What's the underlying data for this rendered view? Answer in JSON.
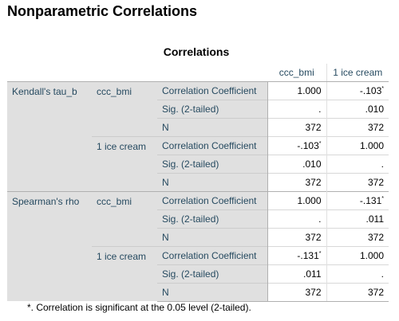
{
  "heading": "Nonparametric Correlations",
  "table_title": "Correlations",
  "columns": [
    "ccc_bmi",
    "1 ice cream"
  ],
  "rows": [
    {
      "group": "Kendall's tau_b",
      "var": "ccc_bmi",
      "stat": "Correlation Coefficient",
      "v1": "1.000",
      "v1_sup": "",
      "v2": "-.103",
      "v2_sup": "*"
    },
    {
      "group": "",
      "var": "",
      "stat": "Sig. (2-tailed)",
      "v1": ".",
      "v1_sup": "",
      "v2": ".010",
      "v2_sup": ""
    },
    {
      "group": "",
      "var": "",
      "stat": "N",
      "v1": "372",
      "v1_sup": "",
      "v2": "372",
      "v2_sup": ""
    },
    {
      "group": "",
      "var": "1 ice cream",
      "stat": "Correlation Coefficient",
      "v1": "-.103",
      "v1_sup": "*",
      "v2": "1.000",
      "v2_sup": ""
    },
    {
      "group": "",
      "var": "",
      "stat": "Sig. (2-tailed)",
      "v1": ".010",
      "v1_sup": "",
      "v2": ".",
      "v2_sup": ""
    },
    {
      "group": "",
      "var": "",
      "stat": "N",
      "v1": "372",
      "v1_sup": "",
      "v2": "372",
      "v2_sup": ""
    },
    {
      "group": "Spearman's rho",
      "var": "ccc_bmi",
      "stat": "Correlation Coefficient",
      "v1": "1.000",
      "v1_sup": "",
      "v2": "-.131",
      "v2_sup": "*"
    },
    {
      "group": "",
      "var": "",
      "stat": "Sig. (2-tailed)",
      "v1": ".",
      "v1_sup": "",
      "v2": ".011",
      "v2_sup": ""
    },
    {
      "group": "",
      "var": "",
      "stat": "N",
      "v1": "372",
      "v1_sup": "",
      "v2": "372",
      "v2_sup": ""
    },
    {
      "group": "",
      "var": "1 ice cream",
      "stat": "Correlation Coefficient",
      "v1": "-.131",
      "v1_sup": "*",
      "v2": "1.000",
      "v2_sup": ""
    },
    {
      "group": "",
      "var": "",
      "stat": "Sig. (2-tailed)",
      "v1": ".011",
      "v1_sup": "",
      "v2": ".",
      "v2_sup": ""
    },
    {
      "group": "",
      "var": "",
      "stat": "N",
      "v1": "372",
      "v1_sup": "",
      "v2": "372",
      "v2_sup": ""
    }
  ],
  "footnote": "*. Correlation is significant at the 0.05 level (2-tailed)."
}
